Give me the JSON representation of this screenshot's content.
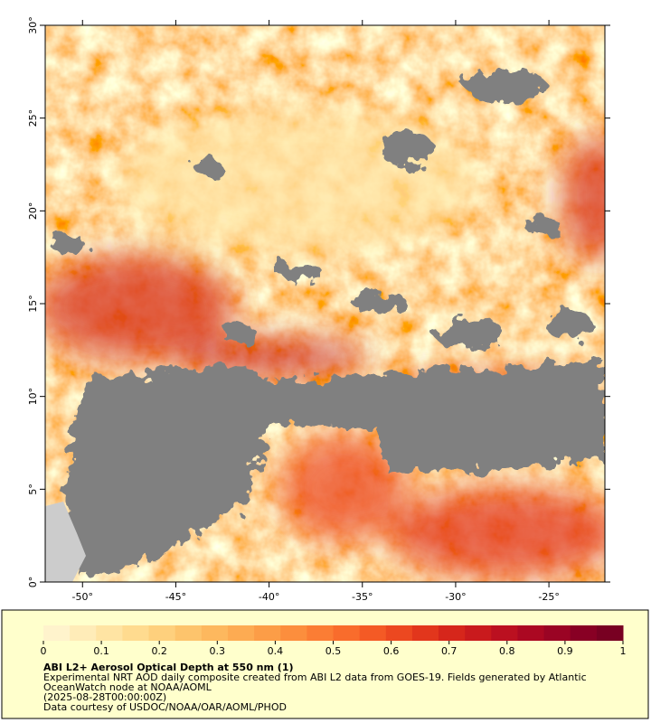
{
  "map": {
    "xlim": [
      -52,
      -22
    ],
    "ylim": [
      0,
      30
    ],
    "xticks": [
      {
        "value": -50,
        "label": "-50°"
      },
      {
        "value": -45,
        "label": "-45°"
      },
      {
        "value": -40,
        "label": "-40°"
      },
      {
        "value": -35,
        "label": "-35°"
      },
      {
        "value": -30,
        "label": "-30°"
      },
      {
        "value": -25,
        "label": "-25°"
      }
    ],
    "yticks": [
      {
        "value": 0,
        "label": "0°"
      },
      {
        "value": 5,
        "label": "5°"
      },
      {
        "value": 10,
        "label": "10°"
      },
      {
        "value": 15,
        "label": "15°"
      },
      {
        "value": 20,
        "label": "20°"
      },
      {
        "value": 25,
        "label": "25°"
      },
      {
        "value": 30,
        "label": "30°"
      }
    ]
  },
  "colorbar": {
    "range": [
      0,
      1
    ],
    "ticks": [
      0,
      0.1,
      0.2,
      0.3,
      0.4,
      0.5,
      0.6,
      0.7,
      0.8,
      0.9,
      1
    ],
    "colors": [
      "#fff3cc",
      "#ffecb8",
      "#ffe4a3",
      "#ffdb8f",
      "#fed07d",
      "#fdc46c",
      "#fdb85e",
      "#fdab52",
      "#fc9d47",
      "#fc8e3d",
      "#fb7d34",
      "#f96c2c",
      "#f45a25",
      "#ec4820",
      "#e2361c",
      "#d6261b",
      "#c91a1d",
      "#bb1020",
      "#ab0822",
      "#9a0424",
      "#880024",
      "#780022"
    ]
  },
  "caption": {
    "title": "ABI L2+ Aerosol Optical Depth at 550 nm (1)",
    "lines": [
      "Experimental NRT AOD daily composite created from ABI L2 data from GOES-19. Fields generated by Atlantic",
      "OceanWatch node at NOAA/AOML",
      "(2025-08-28T00:00:00Z)",
      "Data courtesy of USDOC/NOAA/OAR/AOML/PHOD"
    ]
  }
}
